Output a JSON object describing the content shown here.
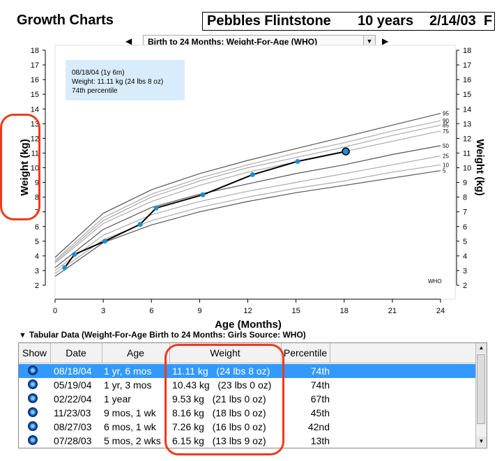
{
  "app": {
    "title": "Growth Charts"
  },
  "patient": {
    "name": "Pebbles Flintstone",
    "age": "10 years",
    "dob": "2/14/03",
    "sex": "F"
  },
  "chart_selector": {
    "selected": "Birth to 24 Months: Weight-For-Age (WHO)",
    "prev_icon": "triangle-left-icon",
    "next_icon": "triangle-right-icon"
  },
  "tooltip": {
    "date": "08/18/04 (1y 6m)",
    "weight": "Weight: 11.11 kg   (24 lbs 8 oz)",
    "percentile": "74th percentile"
  },
  "chart_data": {
    "type": "line",
    "xlabel": "Age (Months)",
    "ylabel_left": "Weight (kg)",
    "ylabel_right": "Weight (kg)",
    "xlim": [
      0,
      24
    ],
    "ylim": [
      2,
      18
    ],
    "xticks": [
      0,
      3,
      6,
      9,
      12,
      15,
      18,
      21,
      24
    ],
    "yticks": [
      2,
      3,
      4,
      5,
      6,
      7,
      8,
      9,
      10,
      11,
      12,
      13,
      14,
      15,
      16,
      17,
      18
    ],
    "source_label": "WHO",
    "percentile_curves": [
      {
        "name": "95",
        "points": [
          [
            0,
            3.9
          ],
          [
            3,
            6.9
          ],
          [
            6,
            8.5
          ],
          [
            9,
            9.6
          ],
          [
            12,
            10.5
          ],
          [
            15,
            11.3
          ],
          [
            18,
            12.1
          ],
          [
            21,
            12.9
          ],
          [
            24,
            13.7
          ]
        ]
      },
      {
        "name": "90",
        "points": [
          [
            0,
            3.7
          ],
          [
            3,
            6.6
          ],
          [
            6,
            8.2
          ],
          [
            9,
            9.3
          ],
          [
            12,
            10.2
          ],
          [
            15,
            11.0
          ],
          [
            18,
            11.7
          ],
          [
            21,
            12.5
          ],
          [
            24,
            13.2
          ]
        ]
      },
      {
        "name": "85",
        "points": [
          [
            0,
            3.6
          ],
          [
            3,
            6.4
          ],
          [
            6,
            8.0
          ],
          [
            9,
            9.1
          ],
          [
            12,
            10.0
          ],
          [
            15,
            10.7
          ],
          [
            18,
            11.4
          ],
          [
            21,
            12.2
          ],
          [
            24,
            12.9
          ]
        ]
      },
      {
        "name": "75",
        "points": [
          [
            0,
            3.5
          ],
          [
            3,
            6.2
          ],
          [
            6,
            7.7
          ],
          [
            9,
            8.8
          ],
          [
            12,
            9.7
          ],
          [
            15,
            10.4
          ],
          [
            18,
            11.1
          ],
          [
            21,
            11.8
          ],
          [
            24,
            12.5
          ]
        ]
      },
      {
        "name": "50",
        "points": [
          [
            0,
            3.2
          ],
          [
            3,
            5.8
          ],
          [
            6,
            7.3
          ],
          [
            9,
            8.2
          ],
          [
            12,
            8.9
          ],
          [
            15,
            9.6
          ],
          [
            18,
            10.2
          ],
          [
            21,
            10.9
          ],
          [
            24,
            11.5
          ]
        ]
      },
      {
        "name": "25",
        "points": [
          [
            0,
            3.0
          ],
          [
            3,
            5.4
          ],
          [
            6,
            6.8
          ],
          [
            9,
            7.7
          ],
          [
            12,
            8.4
          ],
          [
            15,
            9.0
          ],
          [
            18,
            9.6
          ],
          [
            21,
            10.2
          ],
          [
            24,
            10.8
          ]
        ]
      },
      {
        "name": "10",
        "points": [
          [
            0,
            2.8
          ],
          [
            3,
            5.1
          ],
          [
            6,
            6.4
          ],
          [
            9,
            7.3
          ],
          [
            12,
            8.0
          ],
          [
            15,
            8.6
          ],
          [
            18,
            9.1
          ],
          [
            21,
            9.7
          ],
          [
            24,
            10.2
          ]
        ]
      },
      {
        "name": "5",
        "points": [
          [
            0,
            2.6
          ],
          [
            3,
            4.9
          ],
          [
            6,
            6.1
          ],
          [
            9,
            7.0
          ],
          [
            12,
            7.7
          ],
          [
            15,
            8.3
          ],
          [
            18,
            8.8
          ],
          [
            21,
            9.3
          ],
          [
            24,
            9.8
          ]
        ]
      }
    ],
    "patient_points": [
      [
        0.6,
        3.2
      ],
      [
        1.2,
        4.1
      ],
      [
        3.1,
        5.0
      ],
      [
        5.3,
        6.15
      ],
      [
        6.3,
        7.26
      ],
      [
        9.2,
        8.16
      ],
      [
        12.3,
        9.53
      ],
      [
        15.1,
        10.43
      ],
      [
        18.1,
        11.11
      ]
    ]
  },
  "table": {
    "header": "Tabular Data  (Weight-For-Age Birth to 24 Months: Girls   Source: WHO)",
    "columns": [
      "Show",
      "Date",
      "Age",
      "Weight",
      "Percentile"
    ],
    "rows": [
      {
        "date": "08/18/04",
        "age": "1 yr, 6 mos",
        "weight": "11.11 kg   (24 lbs 8 oz)",
        "percentile": "74th"
      },
      {
        "date": "05/19/04",
        "age": "1 yr, 3 mos",
        "weight": "10.43 kg   (23 lbs 0 oz)",
        "percentile": "74th"
      },
      {
        "date": "02/22/04",
        "age": "1 year",
        "weight": "9.53 kg   (21 lbs 0 oz)",
        "percentile": "67th"
      },
      {
        "date": "11/23/03",
        "age": "9 mos, 1 wk",
        "weight": "8.16 kg   (18 lbs 0 oz)",
        "percentile": "45th"
      },
      {
        "date": "08/27/03",
        "age": "6 mos, 1 wk",
        "weight": "7.26 kg   (16 lbs 0 oz)",
        "percentile": "42nd"
      },
      {
        "date": "07/28/03",
        "age": "5 mos, 2 wks",
        "weight": "6.15 kg   (13 lbs 9 oz)",
        "percentile": "13th"
      }
    ]
  },
  "colors": {
    "selected_row": "#3399ff",
    "patient_point": "#1a8fd6",
    "annotation": "#ee3a1c",
    "tooltip_bg": "#d9ecfb"
  }
}
